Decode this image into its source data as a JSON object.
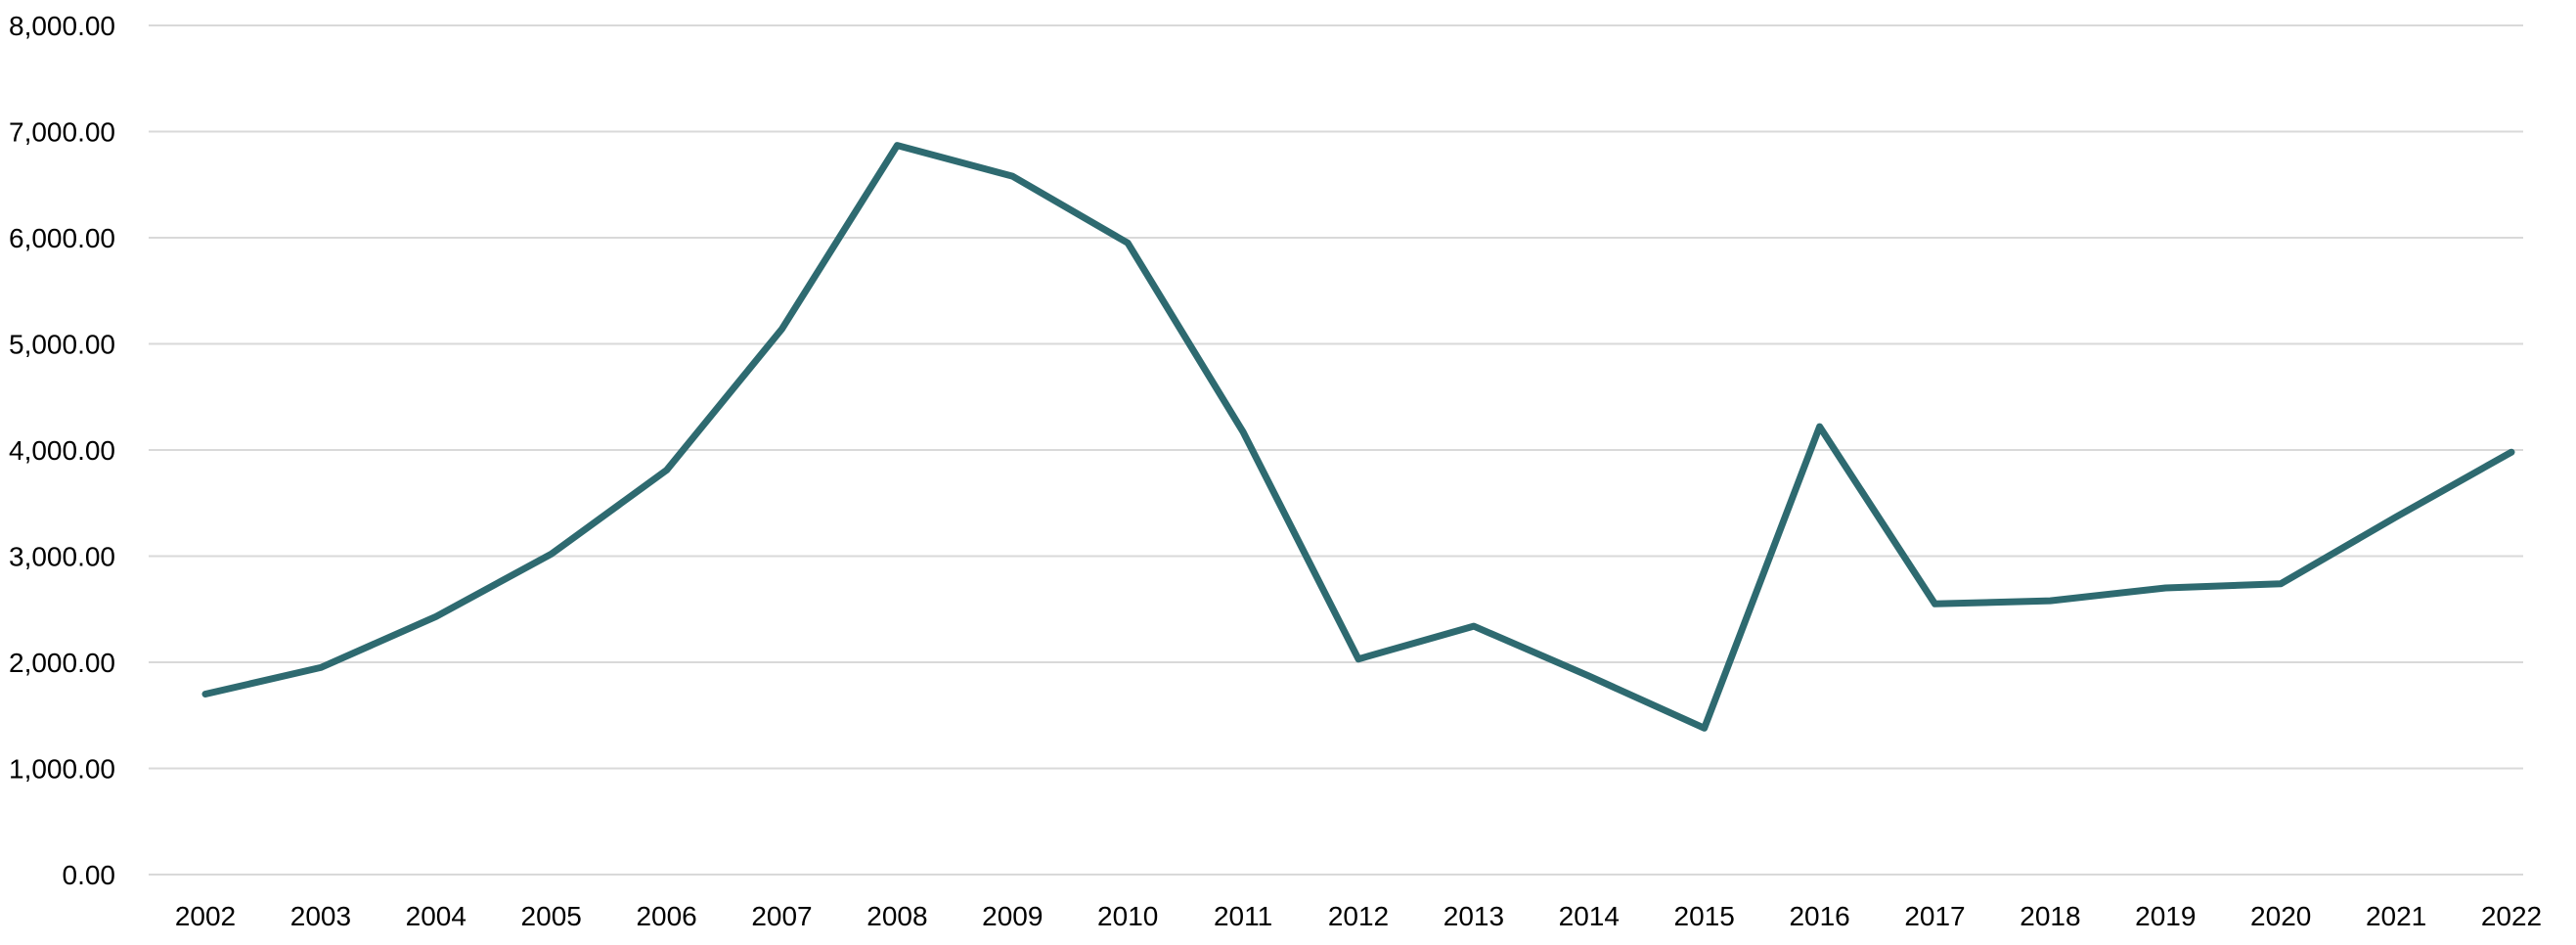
{
  "chart_data": {
    "type": "line",
    "title": "",
    "xlabel": "",
    "ylabel": "",
    "x": [
      "2002",
      "2003",
      "2004",
      "2005",
      "2006",
      "2007",
      "2008",
      "2009",
      "2010",
      "2011",
      "2012",
      "2013",
      "2014",
      "2015",
      "2016",
      "2017",
      "2018",
      "2019",
      "2020",
      "2021",
      "2022"
    ],
    "series": [
      {
        "color": "#2e6a70",
        "values": [
          1700,
          1950,
          2430,
          3020,
          3810,
          5140,
          6870,
          6580,
          5950,
          4170,
          2030,
          2340,
          1870,
          1380,
          4220,
          2550,
          2580,
          2700,
          2740,
          3370,
          3980
        ]
      }
    ],
    "ylim": [
      0,
      8000
    ],
    "y_ticks": [
      0,
      1000,
      2000,
      3000,
      4000,
      5000,
      6000,
      7000,
      8000
    ],
    "y_tick_labels": [
      "0.00",
      "1,000.00",
      "2,000.00",
      "3,000.00",
      "4,000.00",
      "5,000.00",
      "6,000.00",
      "7,000.00",
      "8,000.00"
    ],
    "grid": true,
    "legend": "none"
  }
}
